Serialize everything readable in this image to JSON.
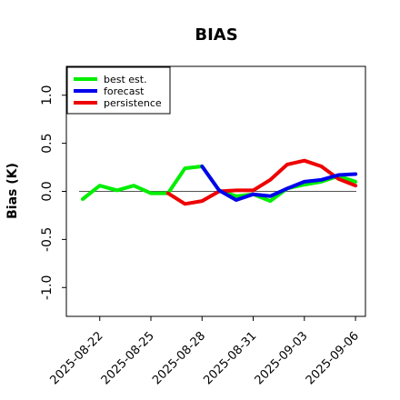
{
  "chart_data": {
    "type": "line",
    "title": "BIAS",
    "xlabel": "",
    "ylabel": "Bias (K)",
    "ylim": [
      -1.3,
      1.3
    ],
    "yticks": [
      -1.0,
      -0.5,
      0.0,
      0.5,
      1.0
    ],
    "ytick_labels": [
      "-1.0",
      "-0.5",
      "0.0",
      "0.5",
      "1.0"
    ],
    "xlim": [
      "2025-08-20T01:00",
      "2025-09-06T14:00"
    ],
    "xticks": [
      "2025-08-22",
      "2025-08-25",
      "2025-08-28",
      "2025-08-31",
      "2025-09-03",
      "2025-09-06"
    ],
    "xtick_labels": [
      "2025-08-22",
      "2025-08-25",
      "2025-08-28",
      "2025-08-31",
      "2025-09-03",
      "2025-09-06"
    ],
    "xtick_colors": [
      "#000000",
      "#000000",
      "#228b22",
      "#000000",
      "#000000",
      "#000000"
    ],
    "zero_line": 0.0,
    "grid": false,
    "legend_position": "top-left",
    "series": [
      {
        "name": "best est.",
        "color": "#00ee00",
        "x": [
          "2025-08-21",
          "2025-08-22",
          "2025-08-23",
          "2025-08-24",
          "2025-08-25",
          "2025-08-26",
          "2025-08-27",
          "2025-08-28",
          "2025-08-29",
          "2025-08-30",
          "2025-08-31",
          "2025-09-01",
          "2025-09-02",
          "2025-09-03",
          "2025-09-04",
          "2025-09-05",
          "2025-09-06"
        ],
        "values": [
          -0.08,
          0.06,
          0.01,
          0.06,
          -0.02,
          -0.02,
          0.24,
          0.26,
          0.01,
          -0.05,
          -0.03,
          -0.1,
          0.03,
          0.07,
          0.1,
          0.16,
          0.1
        ]
      },
      {
        "name": "forecast",
        "color": "#0000ee",
        "x": [
          "2025-08-28",
          "2025-08-29",
          "2025-08-30",
          "2025-08-31",
          "2025-09-01",
          "2025-09-02",
          "2025-09-03",
          "2025-09-04",
          "2025-09-05",
          "2025-09-06"
        ],
        "values": [
          0.26,
          0.01,
          -0.09,
          -0.03,
          -0.05,
          0.03,
          0.1,
          0.12,
          0.17,
          0.18
        ]
      },
      {
        "name": "persistence",
        "color": "#ee0000",
        "x": [
          "2025-08-26",
          "2025-08-27",
          "2025-08-28",
          "2025-08-29",
          "2025-08-30",
          "2025-08-31",
          "2025-09-01",
          "2025-09-02",
          "2025-09-03",
          "2025-09-04",
          "2025-09-05",
          "2025-09-06"
        ],
        "values": [
          -0.02,
          -0.13,
          -0.1,
          0.0,
          0.01,
          0.01,
          0.12,
          0.28,
          0.32,
          0.26,
          0.13,
          0.06
        ]
      }
    ]
  }
}
